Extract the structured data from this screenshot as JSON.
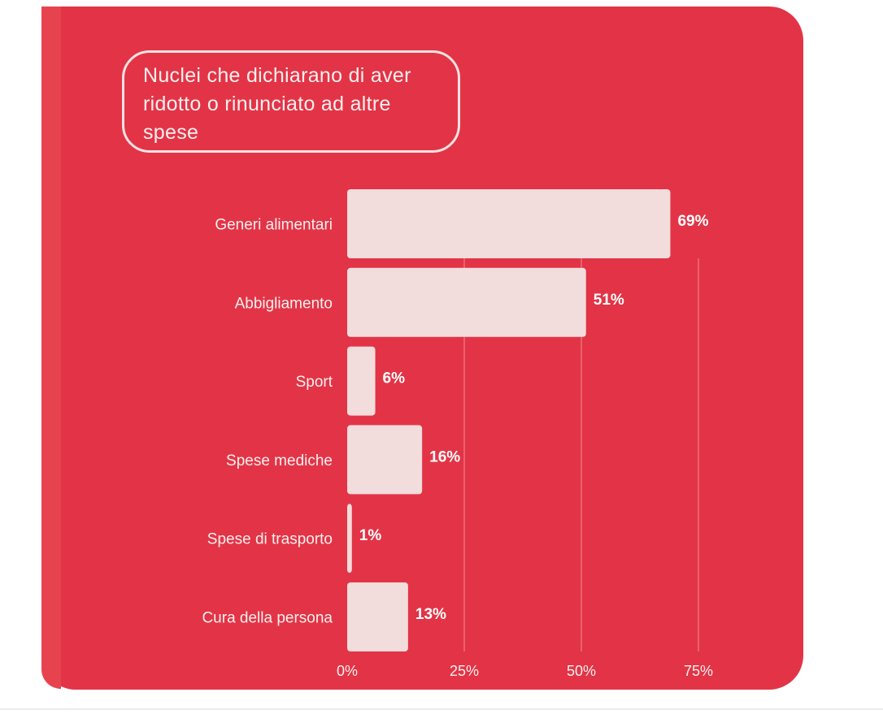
{
  "chart_data": {
    "type": "bar",
    "orientation": "horizontal",
    "title": "Nuclei che dichiarano di aver ridotto o rinunciato ad altre spese",
    "categories": [
      "Generi alimentari",
      "Abbigliamento",
      "Sport",
      "Spese mediche",
      "Spese di trasporto",
      "Cura della persona"
    ],
    "values": [
      69,
      51,
      6,
      16,
      1,
      13
    ],
    "value_labels": [
      "69%",
      "51%",
      "6%",
      "16%",
      "1%",
      "13%"
    ],
    "xlim": [
      0,
      75
    ],
    "x_ticks": [
      0,
      25,
      50,
      75
    ],
    "x_tick_labels": [
      "0%",
      "25%",
      "50%",
      "75%"
    ],
    "grid": true,
    "legend": "none",
    "xlabel": "",
    "ylabel": ""
  },
  "colors": {
    "background": "#e23446",
    "bar": "#f3dcdc",
    "text": "#fbefef",
    "grid": "#f08d96"
  }
}
